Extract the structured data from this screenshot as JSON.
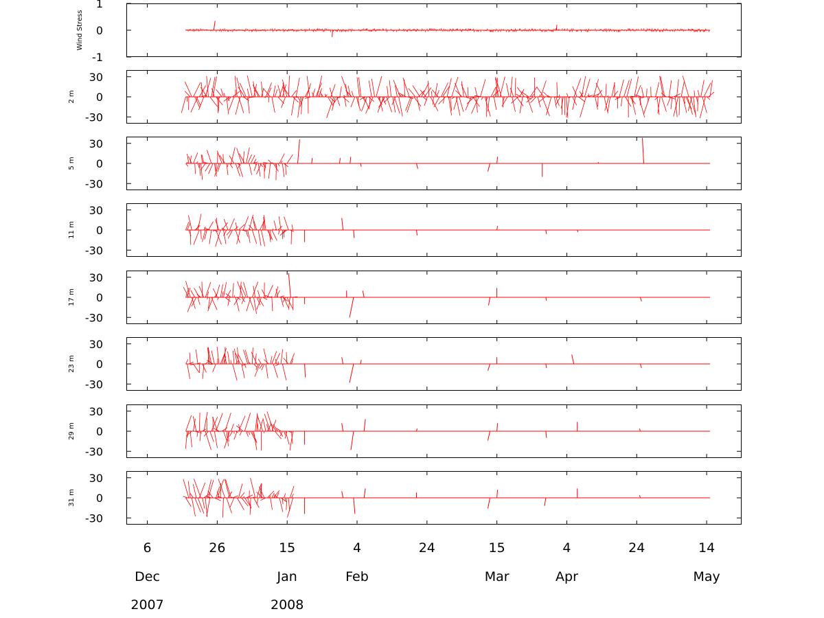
{
  "chart_data": {
    "type": "line",
    "chart_style": "stick-vector time series (multiple stacked panels)",
    "series_color": "#ff0000",
    "axis_color": "#000000",
    "background": "#ffffff",
    "grid": false,
    "x_axis": {
      "range": [
        "2007-11-30",
        "2008-05-24"
      ],
      "data_start": "2007-12-17",
      "data_end": "2008-05-15",
      "tick_labels": [
        "6",
        "26",
        "15",
        "4",
        "24",
        "15",
        "4",
        "24",
        "14"
      ],
      "tick_dates": [
        "2007-12-06",
        "2007-12-26",
        "2008-01-15",
        "2008-02-04",
        "2008-02-24",
        "2008-03-15",
        "2008-04-04",
        "2008-04-24",
        "2008-05-14"
      ],
      "month_labels": [
        {
          "label": "Dec",
          "date": "2007-12-06"
        },
        {
          "label": "Jan",
          "date": "2008-01-15"
        },
        {
          "label": "Feb",
          "date": "2008-02-04"
        },
        {
          "label": "Mar",
          "date": "2008-03-15"
        },
        {
          "label": "Apr",
          "date": "2008-04-04"
        },
        {
          "label": "May",
          "date": "2008-05-14"
        }
      ],
      "year_labels": [
        {
          "label": "2007",
          "date": "2007-12-06"
        },
        {
          "label": "2008",
          "date": "2008-01-15"
        }
      ]
    },
    "panels": [
      {
        "ylabel": "Wind Stress",
        "ylim": [
          -1,
          1
        ],
        "yticks": [
          -1,
          0,
          1
        ],
        "ytick_labels": [
          "-1",
          "0",
          "1"
        ],
        "activity": [
          {
            "from": "2007-12-17",
            "to": "2008-05-15",
            "amplitude": 0.08
          }
        ],
        "notable_sticks": [
          {
            "date": "2007-12-25",
            "u": 0.05,
            "v": 0.35
          },
          {
            "date": "2008-01-28",
            "u": -0.02,
            "v": -0.25
          },
          {
            "date": "2008-04-01",
            "u": 0.02,
            "v": 0.2
          }
        ]
      },
      {
        "ylabel": "2 m",
        "ylim": [
          -40,
          40
        ],
        "yticks": [
          -30,
          0,
          30
        ],
        "ytick_labels": [
          "-30",
          "0",
          "30"
        ],
        "activity": [
          {
            "from": "2007-12-17",
            "to": "2008-05-15",
            "amplitude": 32
          }
        ],
        "notable_sticks": []
      },
      {
        "ylabel": "5 m",
        "ylim": [
          -40,
          40
        ],
        "yticks": [
          -30,
          0,
          30
        ],
        "ytick_labels": [
          "-30",
          "0",
          "30"
        ],
        "activity": [
          {
            "from": "2007-12-17",
            "to": "2008-01-15",
            "amplitude": 25
          }
        ],
        "notable_sticks": [
          {
            "date": "2008-01-18",
            "u": 3,
            "v": 36
          },
          {
            "date": "2008-01-22",
            "u": 1,
            "v": 8
          },
          {
            "date": "2008-01-30",
            "u": 1,
            "v": 8
          },
          {
            "date": "2008-02-02",
            "u": 1,
            "v": 10
          },
          {
            "date": "2008-02-05",
            "u": 1,
            "v": -5
          },
          {
            "date": "2008-02-21",
            "u": 2,
            "v": -8
          },
          {
            "date": "2008-03-13",
            "u": -3,
            "v": -12
          },
          {
            "date": "2008-03-15",
            "u": 1,
            "v": 10
          },
          {
            "date": "2008-03-28",
            "u": 0,
            "v": -20
          },
          {
            "date": "2008-04-13",
            "u": 0,
            "v": 2
          },
          {
            "date": "2008-04-26",
            "u": -2,
            "v": 38
          }
        ]
      },
      {
        "ylabel": "11 m",
        "ylim": [
          -40,
          40
        ],
        "yticks": [
          -30,
          0,
          30
        ],
        "ytick_labels": [
          "-30",
          "0",
          "30"
        ],
        "activity": [
          {
            "from": "2007-12-17",
            "to": "2008-01-17",
            "amplitude": 25
          }
        ],
        "notable_sticks": [
          {
            "date": "2008-01-20",
            "u": 0,
            "v": -18
          },
          {
            "date": "2008-01-31",
            "u": -2,
            "v": 18
          },
          {
            "date": "2008-02-03",
            "u": 1,
            "v": -12
          },
          {
            "date": "2008-02-21",
            "u": 1,
            "v": -8
          },
          {
            "date": "2008-03-15",
            "u": 1,
            "v": 6
          },
          {
            "date": "2008-03-29",
            "u": 1,
            "v": -6
          },
          {
            "date": "2008-04-07",
            "u": 1,
            "v": -3
          }
        ]
      },
      {
        "ylabel": "17 m",
        "ylim": [
          -40,
          40
        ],
        "yticks": [
          -30,
          0,
          30
        ],
        "ytick_labels": [
          "-30",
          "0",
          "30"
        ],
        "activity": [
          {
            "from": "2007-12-17",
            "to": "2008-01-17",
            "amplitude": 25
          }
        ],
        "notable_sticks": [
          {
            "date": "2008-01-16",
            "u": -3,
            "v": 36
          },
          {
            "date": "2008-01-20",
            "u": 0,
            "v": -10
          },
          {
            "date": "2008-02-01",
            "u": 0,
            "v": 10
          },
          {
            "date": "2008-02-03",
            "u": -6,
            "v": -30
          },
          {
            "date": "2008-02-06",
            "u": -2,
            "v": 10
          },
          {
            "date": "2008-03-13",
            "u": -2,
            "v": -12
          },
          {
            "date": "2008-03-15",
            "u": 0,
            "v": 14
          },
          {
            "date": "2008-03-29",
            "u": 1,
            "v": -5
          },
          {
            "date": "2008-04-25",
            "u": 2,
            "v": -6
          }
        ]
      },
      {
        "ylabel": "23 m",
        "ylim": [
          -40,
          40
        ],
        "yticks": [
          -30,
          0,
          30
        ],
        "ytick_labels": [
          "-30",
          "0",
          "30"
        ],
        "activity": [
          {
            "from": "2007-12-17",
            "to": "2008-01-17",
            "amplitude": 26
          }
        ],
        "notable_sticks": [
          {
            "date": "2008-01-20",
            "u": 1,
            "v": -20
          },
          {
            "date": "2008-01-31",
            "u": -2,
            "v": 10
          },
          {
            "date": "2008-02-03",
            "u": -6,
            "v": -28
          },
          {
            "date": "2008-02-05",
            "u": 1,
            "v": 6
          },
          {
            "date": "2008-03-13",
            "u": -3,
            "v": -10
          },
          {
            "date": "2008-03-15",
            "u": 0,
            "v": 10
          },
          {
            "date": "2008-03-29",
            "u": 1,
            "v": -6
          },
          {
            "date": "2008-04-06",
            "u": -3,
            "v": 14
          },
          {
            "date": "2008-04-25",
            "u": 2,
            "v": -6
          }
        ]
      },
      {
        "ylabel": "29 m",
        "ylim": [
          -40,
          40
        ],
        "yticks": [
          -30,
          0,
          30
        ],
        "ytick_labels": [
          "-30",
          "0",
          "30"
        ],
        "activity": [
          {
            "from": "2007-12-17",
            "to": "2008-01-17",
            "amplitude": 30
          }
        ],
        "notable_sticks": [
          {
            "date": "2008-01-20",
            "u": 0,
            "v": -20
          },
          {
            "date": "2008-01-31",
            "u": -2,
            "v": 12
          },
          {
            "date": "2008-02-03",
            "u": -4,
            "v": -28
          },
          {
            "date": "2008-02-06",
            "u": 2,
            "v": 18
          },
          {
            "date": "2008-02-21",
            "u": 1,
            "v": 4
          },
          {
            "date": "2008-03-13",
            "u": -3,
            "v": -14
          },
          {
            "date": "2008-03-15",
            "u": 1,
            "v": 12
          },
          {
            "date": "2008-03-29",
            "u": 1,
            "v": -10
          },
          {
            "date": "2008-04-07",
            "u": 0,
            "v": 14
          },
          {
            "date": "2008-04-25",
            "u": -1,
            "v": 4
          }
        ]
      },
      {
        "ylabel": "31 m",
        "ylim": [
          -40,
          40
        ],
        "yticks": [
          -30,
          0,
          30
        ],
        "ytick_labels": [
          "-30",
          "0",
          "30"
        ],
        "activity": [
          {
            "from": "2007-12-17",
            "to": "2008-01-17",
            "amplitude": 30
          }
        ],
        "notable_sticks": [
          {
            "date": "2008-01-20",
            "u": 0,
            "v": -24
          },
          {
            "date": "2008-01-31",
            "u": -2,
            "v": 10
          },
          {
            "date": "2008-02-03",
            "u": 2,
            "v": -24
          },
          {
            "date": "2008-02-06",
            "u": 2,
            "v": 14
          },
          {
            "date": "2008-02-21",
            "u": 0,
            "v": 8
          },
          {
            "date": "2008-03-13",
            "u": -3,
            "v": -16
          },
          {
            "date": "2008-03-15",
            "u": 1,
            "v": 12
          },
          {
            "date": "2008-03-29",
            "u": -2,
            "v": -12
          },
          {
            "date": "2008-04-07",
            "u": 0,
            "v": 14
          },
          {
            "date": "2008-04-25",
            "u": -1,
            "v": 4
          }
        ]
      }
    ]
  }
}
